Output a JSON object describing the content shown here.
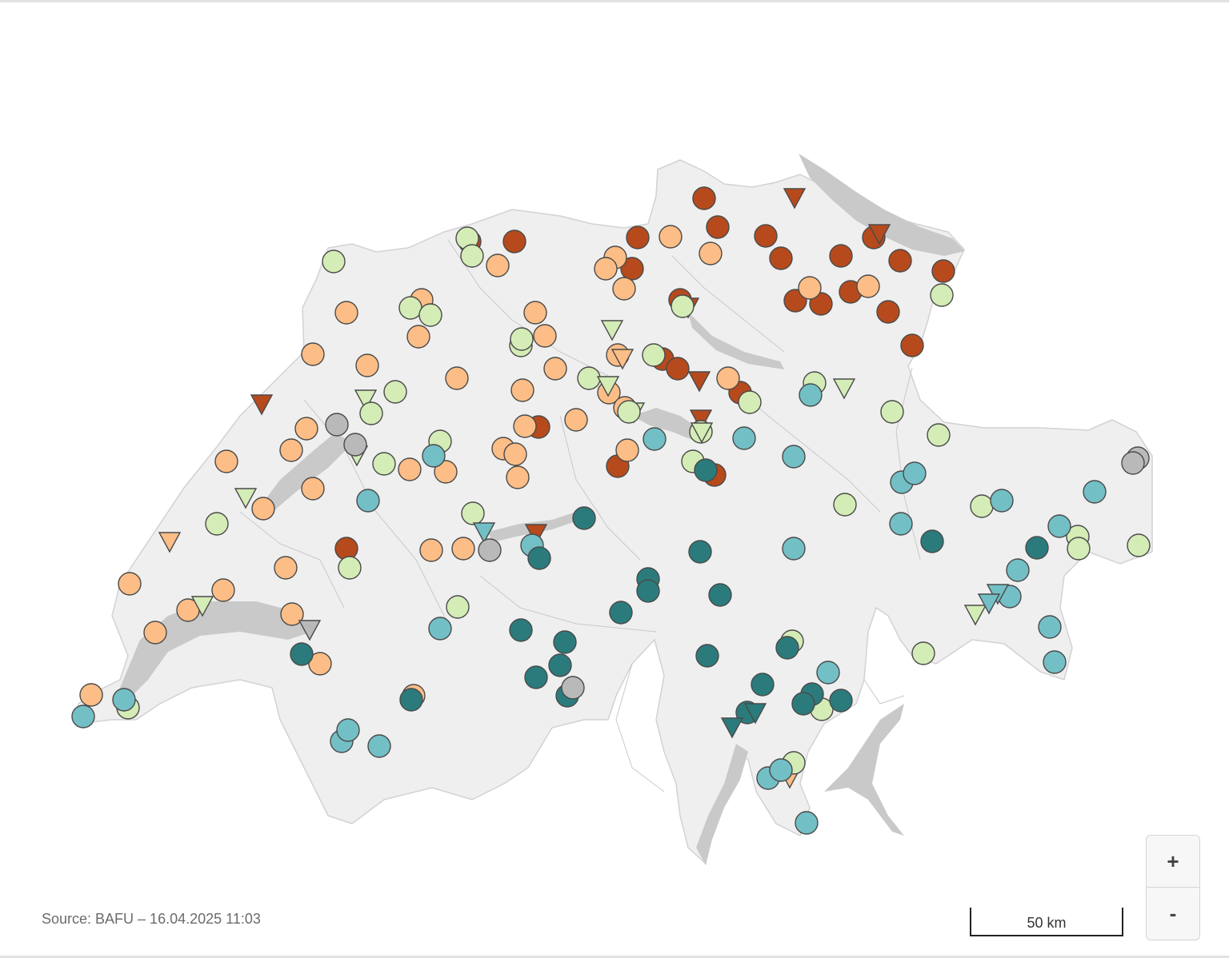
{
  "source_text": "Source: BAFU – 16.04.2025 11:03",
  "scale_label": "50 km",
  "zoom": {
    "in_label": "+",
    "out_label": "-"
  },
  "colors": {
    "dark_red": "#b64a1c",
    "orange": "#fcbd86",
    "light_green": "#d4ecb6",
    "light_teal": "#73bfc6",
    "dark_teal": "#2b7b7c",
    "grey": "#b9b9b9",
    "land": "#efefef",
    "lake": "#c9c9c9"
  },
  "stations": [
    [
      "c",
      "dark_red",
      880,
      248
    ],
    [
      "t",
      "dark_red",
      993,
      247
    ],
    [
      "c",
      "dark_red",
      897,
      284
    ],
    [
      "c",
      "dark_red",
      957,
      295
    ],
    [
      "c",
      "dark_red",
      1092,
      297
    ],
    [
      "t",
      "dark_red",
      1099,
      292
    ],
    [
      "c",
      "dark_red",
      976,
      323
    ],
    [
      "c",
      "dark_red",
      1051,
      320
    ],
    [
      "c",
      "dark_red",
      1125,
      326
    ],
    [
      "c",
      "dark_red",
      1179,
      339
    ],
    [
      "c",
      "dark_red",
      994,
      376
    ],
    [
      "c",
      "dark_red",
      1026,
      380
    ],
    [
      "c",
      "dark_red",
      1063,
      365
    ],
    [
      "c",
      "dark_red",
      1110,
      390
    ],
    [
      "c",
      "dark_red",
      1140,
      432
    ],
    [
      "c",
      "dark_red",
      797,
      297
    ],
    [
      "c",
      "dark_red",
      790,
      336
    ],
    [
      "c",
      "dark_red",
      643,
      302
    ],
    [
      "c",
      "dark_red",
      587,
      302
    ],
    [
      "c",
      "dark_red",
      850,
      375
    ],
    [
      "t",
      "dark_red",
      860,
      384
    ],
    [
      "c",
      "dark_red",
      828,
      449
    ],
    [
      "c",
      "dark_red",
      847,
      461
    ],
    [
      "t",
      "dark_red",
      874,
      476
    ],
    [
      "c",
      "dark_red",
      925,
      491
    ],
    [
      "t",
      "dark_red",
      876,
      524
    ],
    [
      "c",
      "dark_red",
      673,
      534
    ],
    [
      "c",
      "dark_red",
      772,
      583
    ],
    [
      "c",
      "dark_red",
      893,
      594
    ],
    [
      "t",
      "dark_red",
      327,
      505
    ],
    [
      "c",
      "dark_red",
      433,
      686
    ],
    [
      "t",
      "dark_red",
      670,
      667
    ],
    [
      "c",
      "orange",
      838,
      296
    ],
    [
      "c",
      "orange",
      888,
      317
    ],
    [
      "c",
      "orange",
      769,
      322
    ],
    [
      "c",
      "orange",
      757,
      336
    ],
    [
      "c",
      "orange",
      780,
      361
    ],
    [
      "c",
      "orange",
      1012,
      360
    ],
    [
      "c",
      "orange",
      1085,
      358
    ],
    [
      "c",
      "orange",
      622,
      332
    ],
    [
      "c",
      "orange",
      527,
      375
    ],
    [
      "c",
      "orange",
      433,
      391
    ],
    [
      "c",
      "orange",
      669,
      391
    ],
    [
      "c",
      "orange",
      523,
      421
    ],
    [
      "c",
      "orange",
      681,
      420
    ],
    [
      "c",
      "orange",
      391,
      443
    ],
    [
      "c",
      "orange",
      459,
      457
    ],
    [
      "c",
      "orange",
      772,
      444
    ],
    [
      "t",
      "orange",
      778,
      448
    ],
    [
      "c",
      "orange",
      694,
      461
    ],
    [
      "c",
      "orange",
      571,
      473
    ],
    [
      "c",
      "orange",
      910,
      473
    ],
    [
      "c",
      "orange",
      761,
      491
    ],
    [
      "c",
      "orange",
      653,
      488
    ],
    [
      "c",
      "orange",
      781,
      510
    ],
    [
      "c",
      "orange",
      720,
      525
    ],
    [
      "c",
      "orange",
      656,
      533
    ],
    [
      "c",
      "orange",
      383,
      536
    ],
    [
      "c",
      "orange",
      364,
      563
    ],
    [
      "c",
      "orange",
      629,
      561
    ],
    [
      "c",
      "orange",
      644,
      568
    ],
    [
      "c",
      "orange",
      784,
      563
    ],
    [
      "c",
      "orange",
      283,
      577
    ],
    [
      "c",
      "orange",
      512,
      587
    ],
    [
      "c",
      "orange",
      557,
      590
    ],
    [
      "c",
      "orange",
      647,
      597
    ],
    [
      "c",
      "orange",
      391,
      611
    ],
    [
      "c",
      "orange",
      329,
      636
    ],
    [
      "t",
      "orange",
      212,
      677
    ],
    [
      "c",
      "orange",
      539,
      688
    ],
    [
      "c",
      "orange",
      579,
      686
    ],
    [
      "c",
      "orange",
      357,
      710
    ],
    [
      "c",
      "orange",
      162,
      730
    ],
    [
      "c",
      "orange",
      279,
      738
    ],
    [
      "c",
      "orange",
      235,
      763
    ],
    [
      "c",
      "orange",
      365,
      768
    ],
    [
      "c",
      "orange",
      194,
      791
    ],
    [
      "c",
      "orange",
      400,
      830
    ],
    [
      "c",
      "orange",
      114,
      869
    ],
    [
      "c",
      "orange",
      517,
      870
    ],
    [
      "t",
      "orange",
      987,
      972
    ],
    [
      "c",
      "light_green",
      417,
      327
    ],
    [
      "c",
      "light_green",
      584,
      298
    ],
    [
      "c",
      "light_green",
      590,
      320
    ],
    [
      "c",
      "light_green",
      513,
      385
    ],
    [
      "c",
      "light_green",
      538,
      394
    ],
    [
      "c",
      "light_green",
      651,
      432
    ],
    [
      "c",
      "light_green",
      652,
      424
    ],
    [
      "t",
      "light_green",
      765,
      412
    ],
    [
      "c",
      "light_green",
      817,
      444
    ],
    [
      "c",
      "light_green",
      736,
      473
    ],
    [
      "c",
      "light_green",
      853,
      383
    ],
    [
      "t",
      "light_green",
      760,
      482
    ],
    [
      "t",
      "light_green",
      792,
      515
    ],
    [
      "c",
      "light_green",
      786,
      515
    ],
    [
      "t",
      "light_green",
      457,
      499
    ],
    [
      "c",
      "light_green",
      464,
      517
    ],
    [
      "c",
      "light_green",
      494,
      490
    ],
    [
      "c",
      "light_green",
      937,
      503
    ],
    [
      "c",
      "light_green",
      1018,
      479
    ],
    [
      "t",
      "light_green",
      1055,
      485
    ],
    [
      "c",
      "light_green",
      1177,
      369
    ],
    [
      "c",
      "light_green",
      1115,
      515
    ],
    [
      "c",
      "light_green",
      1173,
      544
    ],
    [
      "c",
      "light_green",
      550,
      552
    ],
    [
      "c",
      "light_green",
      876,
      540
    ],
    [
      "t",
      "light_green",
      877,
      540
    ],
    [
      "c",
      "light_green",
      866,
      577
    ],
    [
      "c",
      "light_green",
      480,
      580
    ],
    [
      "t",
      "light_green",
      446,
      569
    ],
    [
      "t",
      "light_green",
      307,
      622
    ],
    [
      "c",
      "light_green",
      271,
      655
    ],
    [
      "c",
      "light_green",
      591,
      642
    ],
    [
      "c",
      "light_green",
      437,
      710
    ],
    [
      "t",
      "light_green",
      253,
      757
    ],
    [
      "c",
      "light_green",
      572,
      759
    ],
    [
      "c",
      "light_green",
      1056,
      631
    ],
    [
      "c",
      "light_green",
      1227,
      633
    ],
    [
      "c",
      "light_green",
      1347,
      671
    ],
    [
      "c",
      "light_green",
      1348,
      686
    ],
    [
      "c",
      "light_green",
      1423,
      682
    ],
    [
      "t",
      "light_green",
      1219,
      768
    ],
    [
      "c",
      "light_green",
      1154,
      817
    ],
    [
      "c",
      "light_green",
      990,
      802
    ],
    [
      "c",
      "light_green",
      1027,
      887
    ],
    [
      "c",
      "light_green",
      992,
      954
    ],
    [
      "c",
      "light_green",
      160,
      885
    ],
    [
      "c",
      "light_teal",
      1013,
      494
    ],
    [
      "c",
      "light_teal",
      930,
      548
    ],
    [
      "c",
      "light_teal",
      992,
      571
    ],
    [
      "c",
      "light_teal",
      818,
      549
    ],
    [
      "c",
      "light_teal",
      542,
      570
    ],
    [
      "c",
      "light_teal",
      460,
      626
    ],
    [
      "t",
      "light_teal",
      605,
      665
    ],
    [
      "c",
      "light_teal",
      665,
      682
    ],
    [
      "c",
      "light_teal",
      1127,
      603
    ],
    [
      "c",
      "light_teal",
      1143,
      592
    ],
    [
      "c",
      "light_teal",
      1252,
      626
    ],
    [
      "c",
      "light_teal",
      1368,
      615
    ],
    [
      "c",
      "light_teal",
      1126,
      655
    ],
    [
      "c",
      "light_teal",
      1324,
      658
    ],
    [
      "c",
      "light_teal",
      992,
      686
    ],
    [
      "c",
      "light_teal",
      1272,
      713
    ],
    [
      "c",
      "light_teal",
      1262,
      746
    ],
    [
      "t",
      "light_teal",
      1247,
      742
    ],
    [
      "t",
      "light_teal",
      1236,
      754
    ],
    [
      "c",
      "light_teal",
      1312,
      784
    ],
    [
      "c",
      "light_teal",
      1318,
      828
    ],
    [
      "c",
      "light_teal",
      550,
      786
    ],
    [
      "c",
      "light_teal",
      1035,
      841
    ],
    [
      "c",
      "light_teal",
      427,
      927
    ],
    [
      "c",
      "light_teal",
      435,
      913
    ],
    [
      "c",
      "light_teal",
      474,
      933
    ],
    [
      "c",
      "light_teal",
      960,
      973
    ],
    [
      "c",
      "light_teal",
      976,
      963
    ],
    [
      "c",
      "light_teal",
      1008,
      1029
    ],
    [
      "c",
      "light_teal",
      104,
      896
    ],
    [
      "c",
      "light_teal",
      155,
      875
    ],
    [
      "c",
      "dark_teal",
      730,
      648
    ],
    [
      "c",
      "dark_teal",
      674,
      698
    ],
    [
      "c",
      "dark_teal",
      875,
      690
    ],
    [
      "c",
      "dark_teal",
      1165,
      677
    ],
    [
      "c",
      "dark_teal",
      1296,
      685
    ],
    [
      "c",
      "dark_teal",
      810,
      724
    ],
    [
      "c",
      "dark_teal",
      810,
      739
    ],
    [
      "c",
      "dark_teal",
      900,
      744
    ],
    [
      "c",
      "dark_teal",
      776,
      766
    ],
    [
      "c",
      "dark_teal",
      651,
      788
    ],
    [
      "c",
      "dark_teal",
      706,
      803
    ],
    [
      "c",
      "dark_teal",
      377,
      818
    ],
    [
      "c",
      "dark_teal",
      884,
      820
    ],
    [
      "c",
      "dark_teal",
      984,
      810
    ],
    [
      "c",
      "dark_teal",
      700,
      832
    ],
    [
      "c",
      "dark_teal",
      670,
      847
    ],
    [
      "c",
      "dark_teal",
      953,
      856
    ],
    [
      "c",
      "dark_teal",
      709,
      870
    ],
    [
      "c",
      "dark_teal",
      1015,
      868
    ],
    [
      "c",
      "dark_teal",
      1004,
      880
    ],
    [
      "c",
      "dark_teal",
      1051,
      876
    ],
    [
      "c",
      "dark_teal",
      934,
      891
    ],
    [
      "t",
      "dark_teal",
      944,
      891
    ],
    [
      "t",
      "dark_teal",
      915,
      909
    ],
    [
      "c",
      "dark_teal",
      882,
      588
    ],
    [
      "c",
      "dark_teal",
      514,
      875
    ],
    [
      "c",
      "grey",
      421,
      531
    ],
    [
      "c",
      "grey",
      444,
      556
    ],
    [
      "c",
      "grey",
      612,
      688
    ],
    [
      "t",
      "grey",
      387,
      787
    ],
    [
      "c",
      "grey",
      716,
      860
    ],
    [
      "c",
      "grey",
      1422,
      573
    ],
    [
      "c",
      "grey",
      1416,
      579
    ]
  ]
}
